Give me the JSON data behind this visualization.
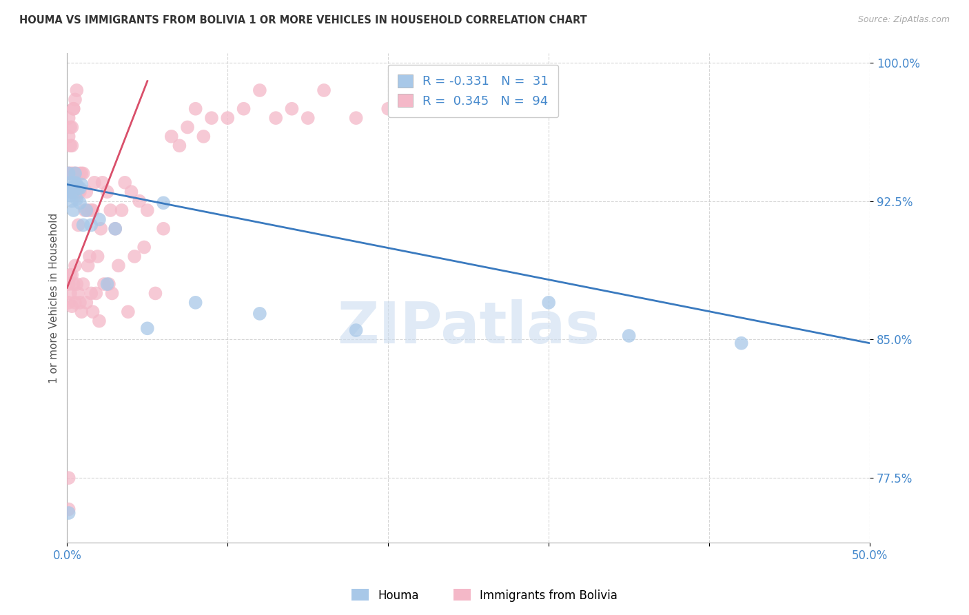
{
  "title": "HOUMA VS IMMIGRANTS FROM BOLIVIA 1 OR MORE VEHICLES IN HOUSEHOLD CORRELATION CHART",
  "source": "Source: ZipAtlas.com",
  "ylabel": "1 or more Vehicles in Household",
  "legend_blue_label": "Houma",
  "legend_pink_label": "Immigrants from Bolivia",
  "watermark": "ZIPatlas",
  "blue_color": "#a8c8e8",
  "pink_color": "#f4b8c8",
  "blue_line_color": "#3a7abf",
  "pink_line_color": "#d94f6a",
  "blue_scatter": {
    "x": [
      0.001,
      0.001,
      0.002,
      0.002,
      0.003,
      0.003,
      0.004,
      0.004,
      0.005,
      0.005,
      0.006,
      0.006,
      0.007,
      0.008,
      0.008,
      0.009,
      0.01,
      0.012,
      0.015,
      0.02,
      0.025,
      0.03,
      0.05,
      0.06,
      0.08,
      0.12,
      0.18,
      0.3,
      0.35,
      0.42,
      0.001
    ],
    "y": [
      0.93,
      0.94,
      0.928,
      0.935,
      0.925,
      0.932,
      0.92,
      0.93,
      0.935,
      0.94,
      0.926,
      0.934,
      0.932,
      0.924,
      0.932,
      0.934,
      0.912,
      0.92,
      0.912,
      0.915,
      0.88,
      0.91,
      0.856,
      0.924,
      0.87,
      0.864,
      0.855,
      0.87,
      0.852,
      0.848,
      0.756
    ]
  },
  "pink_scatter": {
    "x": [
      0.001,
      0.001,
      0.001,
      0.001,
      0.001,
      0.002,
      0.002,
      0.002,
      0.002,
      0.003,
      0.003,
      0.003,
      0.003,
      0.004,
      0.004,
      0.004,
      0.005,
      0.005,
      0.005,
      0.005,
      0.006,
      0.006,
      0.006,
      0.007,
      0.007,
      0.007,
      0.008,
      0.008,
      0.008,
      0.009,
      0.009,
      0.01,
      0.01,
      0.011,
      0.012,
      0.012,
      0.013,
      0.013,
      0.014,
      0.015,
      0.015,
      0.016,
      0.016,
      0.017,
      0.018,
      0.019,
      0.02,
      0.021,
      0.022,
      0.023,
      0.025,
      0.026,
      0.027,
      0.028,
      0.03,
      0.032,
      0.034,
      0.036,
      0.038,
      0.04,
      0.042,
      0.045,
      0.048,
      0.05,
      0.055,
      0.06,
      0.065,
      0.07,
      0.075,
      0.08,
      0.085,
      0.09,
      0.1,
      0.11,
      0.12,
      0.13,
      0.14,
      0.15,
      0.16,
      0.18,
      0.2,
      0.22,
      0.25,
      0.001,
      0.001,
      0.002,
      0.002,
      0.003,
      0.003,
      0.004,
      0.004,
      0.005,
      0.006,
      0.001
    ],
    "y": [
      0.93,
      0.94,
      0.88,
      0.87,
      0.758,
      0.93,
      0.94,
      0.885,
      0.875,
      0.93,
      0.94,
      0.885,
      0.868,
      0.93,
      0.94,
      0.88,
      0.93,
      0.94,
      0.89,
      0.87,
      0.928,
      0.94,
      0.88,
      0.93,
      0.912,
      0.875,
      0.93,
      0.94,
      0.87,
      0.94,
      0.865,
      0.94,
      0.88,
      0.92,
      0.93,
      0.87,
      0.92,
      0.89,
      0.895,
      0.92,
      0.875,
      0.92,
      0.865,
      0.935,
      0.875,
      0.895,
      0.86,
      0.91,
      0.935,
      0.88,
      0.93,
      0.88,
      0.92,
      0.875,
      0.91,
      0.89,
      0.92,
      0.935,
      0.865,
      0.93,
      0.895,
      0.925,
      0.9,
      0.92,
      0.875,
      0.91,
      0.96,
      0.955,
      0.965,
      0.975,
      0.96,
      0.97,
      0.97,
      0.975,
      0.985,
      0.97,
      0.975,
      0.97,
      0.985,
      0.97,
      0.975,
      0.98,
      0.985,
      0.96,
      0.97,
      0.955,
      0.965,
      0.965,
      0.955,
      0.975,
      0.975,
      0.98,
      0.985,
      0.775
    ]
  },
  "xlim": [
    0.0,
    0.5
  ],
  "ylim": [
    0.74,
    1.005
  ],
  "yticks": [
    0.775,
    0.85,
    0.925,
    1.0
  ],
  "ytick_labels": [
    "77.5%",
    "85.0%",
    "92.5%",
    "100.0%"
  ],
  "xticks": [
    0.0,
    0.1,
    0.2,
    0.3,
    0.4,
    0.5
  ],
  "blue_line": {
    "x0": 0.0,
    "x1": 0.5,
    "y0": 0.934,
    "y1": 0.848
  },
  "pink_line": {
    "x0": 0.0,
    "x1": 0.05,
    "y0": 0.878,
    "y1": 0.99
  }
}
